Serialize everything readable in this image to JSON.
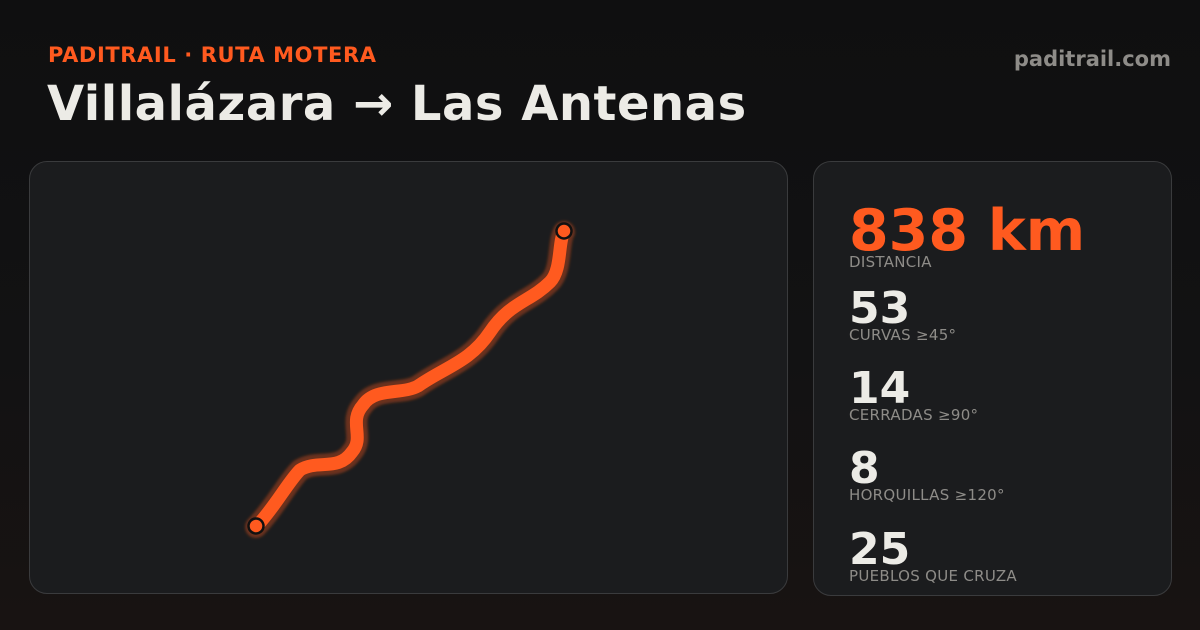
{
  "header": {
    "eyebrow": "PADITRAIL · RUTA MOTERA",
    "title": "Villalázara → Las Antenas",
    "site": "paditrail.com"
  },
  "colors": {
    "accent": "#ff5a1f",
    "route": "#ff5a1f",
    "text": "#ecebe6",
    "muted": "#8e8c88",
    "panel": "#1b1c1e"
  },
  "stats": [
    {
      "value": "838 km",
      "label": "DISTANCIA"
    },
    {
      "value": "53",
      "label": "CURVAS ≥45°"
    },
    {
      "value": "14",
      "label": "CERRADAS ≥90°"
    },
    {
      "value": "8",
      "label": "HORQUILLAS ≥120°"
    },
    {
      "value": "25",
      "label": "PUEBLOS QUE CRUZA"
    }
  ]
}
